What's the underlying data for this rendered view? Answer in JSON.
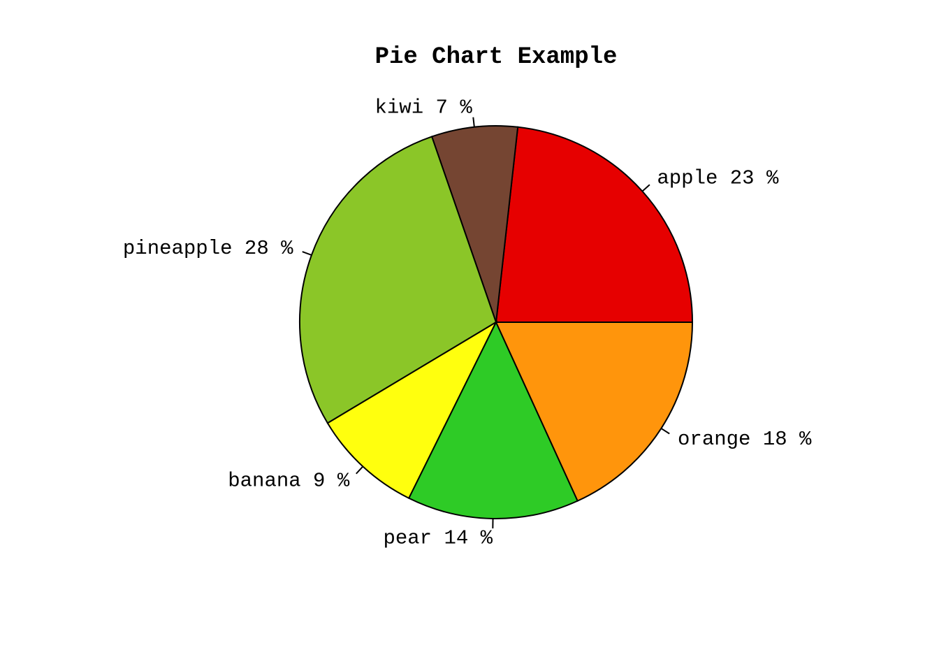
{
  "chart_data": {
    "type": "pie",
    "title": "Pie Chart Example",
    "start_angle_deg": 0,
    "direction": "counterclockwise",
    "slices": [
      {
        "label": "apple",
        "value": 23,
        "display": "apple 23 %",
        "color": "#E60000"
      },
      {
        "label": "kiwi",
        "value": 7,
        "display": "kiwi 7 %",
        "color": "#754532"
      },
      {
        "label": "pineapple",
        "value": 28,
        "display": "pineapple 28 %",
        "color": "#8BC628"
      },
      {
        "label": "banana",
        "value": 9,
        "display": "banana 9 %",
        "color": "#FFFF0E"
      },
      {
        "label": "pear",
        "value": 14,
        "display": "pear 14 %",
        "color": "#2ECB26"
      },
      {
        "label": "orange",
        "value": 18,
        "display": "orange 18 %",
        "color": "#FF950C"
      }
    ]
  }
}
